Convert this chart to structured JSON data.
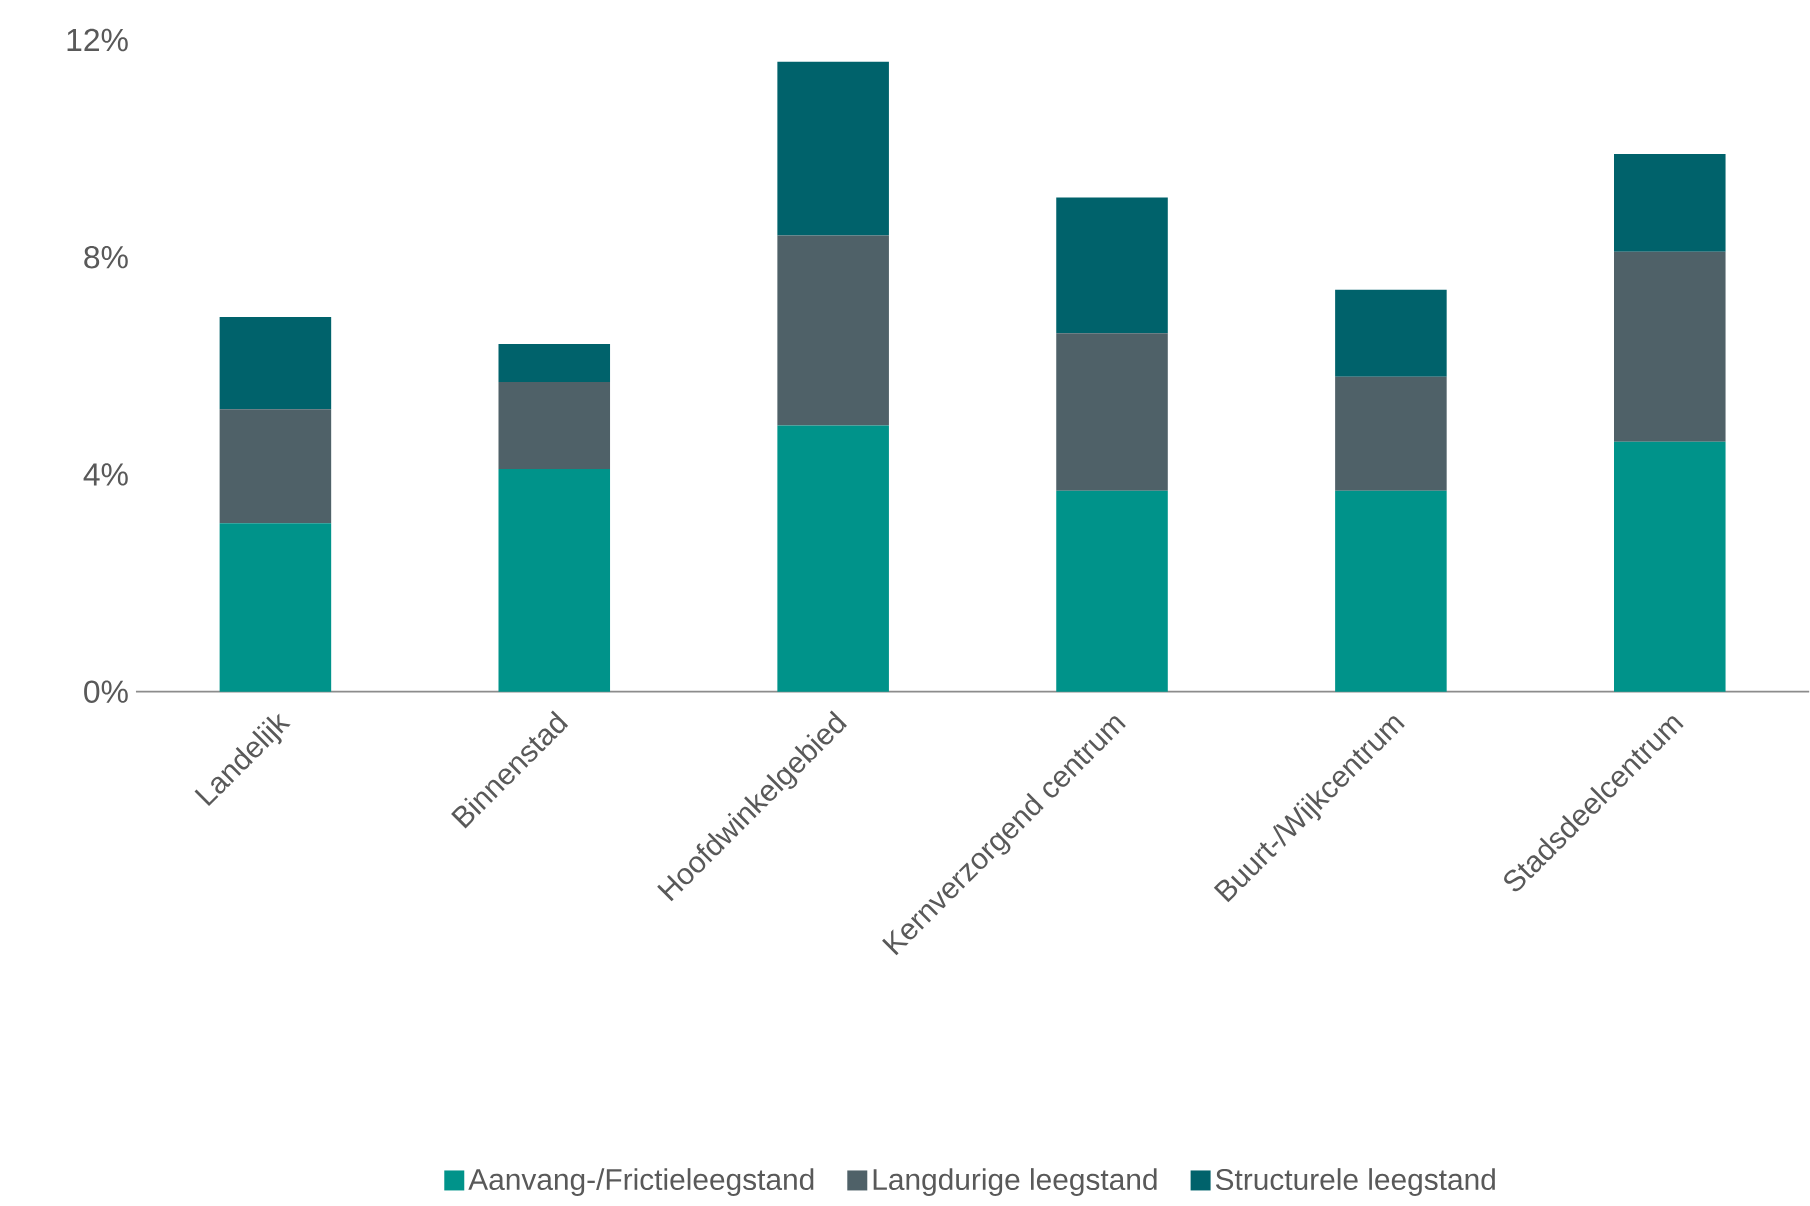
{
  "chart_data": {
    "type": "bar",
    "stacked": true,
    "categories": [
      "Landelijk",
      "Binnenstad",
      "Hoofdwinkelgebied",
      "Kernverzorgend centrum",
      "Buurt-/Wijkcentrum",
      "Stadsdeelcentrum"
    ],
    "series": [
      {
        "name": "Aanvang-/Frictieleegstand",
        "color": "#00938a",
        "values": [
          3.1,
          4.1,
          4.9,
          3.7,
          3.7,
          4.6
        ]
      },
      {
        "name": "Langdurige leegstand",
        "color": "#4f6168",
        "values": [
          2.1,
          1.6,
          3.5,
          2.9,
          2.1,
          3.5
        ]
      },
      {
        "name": "Structurele leegstand",
        "color": "#00626b",
        "values": [
          1.7,
          0.7,
          3.2,
          2.5,
          1.6,
          1.8
        ]
      }
    ],
    "ylim": [
      0,
      12
    ],
    "yticks": [
      {
        "value": 0,
        "label": "0%"
      },
      {
        "value": 4,
        "label": "4%"
      },
      {
        "value": 8,
        "label": "8%"
      },
      {
        "value": 12,
        "label": "12%"
      }
    ],
    "legend": "bottom"
  }
}
